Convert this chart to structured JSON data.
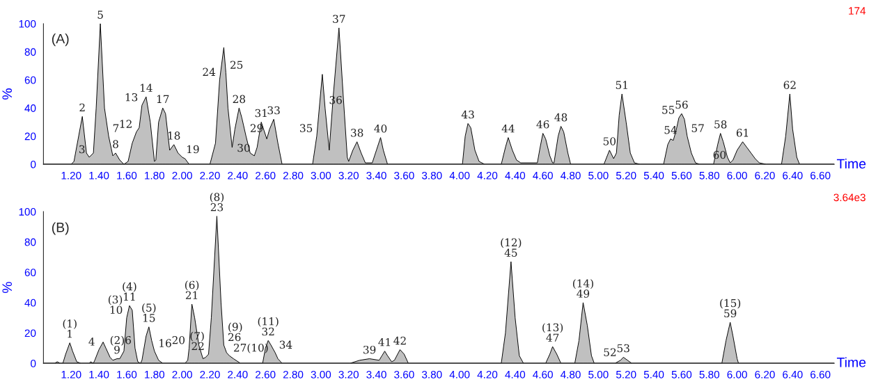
{
  "chart_data": [
    {
      "type": "area",
      "xlabel": "Time",
      "ylabel": "%",
      "color": "#c0c0c0",
      "x": [
        1.0,
        1.2,
        1.22,
        1.28,
        1.31,
        1.33,
        1.36,
        1.38,
        1.41,
        1.44,
        1.47,
        1.5,
        1.52,
        1.55,
        1.58,
        1.61,
        1.64,
        1.67,
        1.69,
        1.71,
        1.74,
        1.77,
        1.8,
        1.81,
        1.83,
        1.86,
        1.88,
        1.91,
        1.94,
        1.97,
        2.0,
        2.02,
        2.05,
        2.2,
        2.24,
        2.27,
        2.3,
        2.315,
        2.33,
        2.36,
        2.38,
        2.41,
        2.43,
        2.46,
        2.49,
        2.52,
        2.54,
        2.57,
        2.59,
        2.61,
        2.63,
        2.66,
        2.69,
        2.72,
        2.94,
        2.97,
        3.01,
        3.03,
        3.06,
        3.09,
        3.13,
        3.16,
        3.19,
        3.2,
        3.23,
        3.26,
        3.29,
        3.32,
        3.37,
        3.4,
        3.43,
        3.45,
        3.48,
        4.02,
        4.04,
        4.06,
        4.08,
        4.11,
        4.14,
        4.18,
        4.3,
        4.33,
        4.35,
        4.38,
        4.41,
        4.44,
        4.56,
        4.58,
        4.6,
        4.62,
        4.65,
        4.67,
        4.68,
        4.71,
        4.73,
        4.75,
        4.78,
        4.8,
        5.04,
        5.08,
        5.11,
        5.13,
        5.15,
        5.17,
        5.2,
        5.23,
        5.26,
        5.3,
        5.47,
        5.5,
        5.52,
        5.54,
        5.56,
        5.58,
        5.6,
        5.62,
        5.64,
        5.67,
        5.7,
        5.73,
        5.83,
        5.86,
        5.88,
        5.9,
        5.93,
        5.95,
        5.97,
        6.0,
        6.04,
        6.07,
        6.1,
        6.13,
        6.16,
        6.21,
        6.32,
        6.35,
        6.38,
        6.4,
        6.43,
        6.45,
        6.7
      ],
      "values": [
        0,
        0,
        2,
        34,
        8,
        5,
        8,
        40,
        100,
        40,
        20,
        6,
        8,
        3,
        0,
        2,
        15,
        23,
        26,
        42,
        48,
        30,
        2,
        3,
        30,
        40,
        36,
        10,
        14,
        8,
        5,
        4,
        0,
        0,
        15,
        60,
        83,
        65,
        40,
        12,
        25,
        40,
        33,
        20,
        8,
        6,
        12,
        30,
        24,
        18,
        25,
        32,
        15,
        0,
        0,
        20,
        64,
        40,
        10,
        50,
        97,
        50,
        5,
        2,
        10,
        16,
        8,
        1,
        1,
        10,
        19,
        10,
        0,
        0,
        20,
        29,
        26,
        10,
        2,
        0,
        0,
        12,
        19,
        10,
        3,
        1,
        1,
        12,
        22,
        18,
        6,
        1,
        1,
        20,
        27,
        23,
        8,
        0,
        0,
        10,
        4,
        8,
        35,
        50,
        30,
        8,
        1,
        0,
        0,
        14,
        18,
        17,
        24,
        33,
        36,
        32,
        20,
        8,
        1,
        0,
        0,
        14,
        22,
        16,
        5,
        1,
        3,
        10,
        16,
        12,
        8,
        4,
        1,
        0,
        0,
        20,
        50,
        25,
        5,
        0,
        0
      ],
      "xlim": [
        1.0,
        6.7
      ],
      "ylim": [
        0,
        100
      ],
      "yticks": [
        0,
        20,
        40,
        60,
        80,
        100
      ],
      "xticks": [
        {
          "value": 1.2,
          "label": "1.20"
        },
        {
          "value": 1.4,
          "label": "1.40"
        },
        {
          "value": 1.6,
          "label": "1.60"
        },
        {
          "value": 1.8,
          "label": "1.80"
        },
        {
          "value": 2.0,
          "label": "2.00"
        },
        {
          "value": 2.2,
          "label": "2.20"
        },
        {
          "value": 2.4,
          "label": "2.40"
        },
        {
          "value": 2.6,
          "label": "2.60"
        },
        {
          "value": 2.8,
          "label": "2.80"
        },
        {
          "value": 3.0,
          "label": "3.00"
        },
        {
          "value": 3.2,
          "label": "3.20"
        },
        {
          "value": 3.4,
          "label": "3.40"
        },
        {
          "value": 3.6,
          "label": "3.60"
        },
        {
          "value": 3.8,
          "label": "3.80"
        },
        {
          "value": 4.0,
          "label": "4.00"
        },
        {
          "value": 4.2,
          "label": "4.20"
        },
        {
          "value": 4.4,
          "label": "4.40"
        },
        {
          "value": 4.6,
          "label": "4.60"
        },
        {
          "value": 4.8,
          "label": "4.80"
        },
        {
          "value": 5.0,
          "label": "5.00"
        },
        {
          "value": 5.2,
          "label": "5.20"
        },
        {
          "value": 5.4,
          "label": "5.40"
        },
        {
          "value": 5.6,
          "label": "5.60"
        },
        {
          "value": 5.8,
          "label": "5.80"
        },
        {
          "value": 6.0,
          "label": "6.00"
        },
        {
          "value": 6.2,
          "label": "6.20"
        },
        {
          "value": 6.4,
          "label": "6.40"
        },
        {
          "value": 6.6,
          "label": "6.60"
        }
      ],
      "annotations": [
        "(A)",
        "174",
        {
          "text": "2",
          "x": 1.28,
          "y": 34
        },
        {
          "text": "3",
          "x": 1.33,
          "y": 5
        },
        {
          "text": "5",
          "x": 1.41,
          "y": 100
        },
        {
          "text": "7",
          "x": 1.47,
          "y": 20
        },
        {
          "text": "8",
          "x": 1.52,
          "y": 8
        },
        {
          "text": "12",
          "x": 1.67,
          "y": 23
        },
        {
          "text": "13",
          "x": 1.71,
          "y": 42
        },
        {
          "text": "14",
          "x": 1.74,
          "y": 48
        },
        {
          "text": "17",
          "x": 1.86,
          "y": 40
        },
        {
          "text": "18",
          "x": 1.94,
          "y": 14
        },
        {
          "text": "19",
          "x": 2.0,
          "y": 5
        },
        {
          "text": "24",
          "x": 2.27,
          "y": 60
        },
        {
          "text": "25",
          "x": 2.315,
          "y": 65
        },
        {
          "text": "28",
          "x": 2.41,
          "y": 40
        },
        {
          "text": "29",
          "x": 2.46,
          "y": 20
        },
        {
          "text": "30",
          "x": 2.52,
          "y": 6
        },
        {
          "text": "31",
          "x": 2.57,
          "y": 30
        },
        {
          "text": "33",
          "x": 2.66,
          "y": 32
        },
        {
          "text": "35",
          "x": 2.97,
          "y": 20
        },
        {
          "text": "36",
          "x": 3.03,
          "y": 40
        },
        {
          "text": "37",
          "x": 3.13,
          "y": 97
        },
        {
          "text": "38",
          "x": 3.26,
          "y": 16
        },
        {
          "text": "40",
          "x": 3.43,
          "y": 19
        },
        {
          "text": "43",
          "x": 4.06,
          "y": 29
        },
        {
          "text": "44",
          "x": 4.35,
          "y": 19
        },
        {
          "text": "46",
          "x": 4.6,
          "y": 22
        },
        {
          "text": "48",
          "x": 4.73,
          "y": 27
        },
        {
          "text": "50",
          "x": 5.08,
          "y": 10
        },
        {
          "text": "51",
          "x": 5.17,
          "y": 50
        },
        {
          "text": "54",
          "x": 5.52,
          "y": 18
        },
        {
          "text": "55",
          "x": 5.58,
          "y": 33
        },
        {
          "text": "56",
          "x": 5.6,
          "y": 36
        },
        {
          "text": "57",
          "x": 5.64,
          "y": 20
        },
        {
          "text": "58",
          "x": 5.88,
          "y": 22
        },
        {
          "text": "60",
          "x": 5.95,
          "y": 1
        },
        {
          "text": "61",
          "x": 6.04,
          "y": 16
        },
        {
          "text": "62",
          "x": 6.38,
          "y": 50
        }
      ]
    },
    {
      "type": "area",
      "xlabel": "Time",
      "ylabel": "%",
      "color": "#c0c0c0",
      "x": [
        1.0,
        1.08,
        1.1,
        1.12,
        1.14,
        1.16,
        1.19,
        1.21,
        1.24,
        1.27,
        1.33,
        1.34,
        1.36,
        1.37,
        1.4,
        1.43,
        1.45,
        1.48,
        1.5,
        1.53,
        1.55,
        1.58,
        1.6,
        1.62,
        1.64,
        1.66,
        1.68,
        1.7,
        1.71,
        1.74,
        1.76,
        1.78,
        1.8,
        1.83,
        1.86,
        2.02,
        2.04,
        2.05,
        2.07,
        2.09,
        2.12,
        2.15,
        2.17,
        2.19,
        2.21,
        2.25,
        2.28,
        2.3,
        2.32,
        2.34,
        2.37,
        2.42,
        2.58,
        2.6,
        2.62,
        2.64,
        2.67,
        2.69,
        2.72,
        3.21,
        3.28,
        3.35,
        3.42,
        3.44,
        3.46,
        3.48,
        3.51,
        3.53,
        3.57,
        3.6,
        3.63,
        4.3,
        4.33,
        4.37,
        4.4,
        4.43,
        4.46,
        4.62,
        4.65,
        4.67,
        4.7,
        4.73,
        4.83,
        4.86,
        4.89,
        4.92,
        4.95,
        4.97,
        5.12,
        5.16,
        5.18,
        5.21,
        5.24,
        5.89,
        5.92,
        5.95,
        5.97,
        6.0,
        6.01,
        6.7
      ],
      "values": [
        0,
        0,
        1,
        0,
        0,
        6,
        13.5,
        8,
        1,
        0,
        0,
        1,
        0,
        2,
        9,
        14,
        10,
        4,
        2,
        3,
        3,
        8,
        30,
        38,
        35,
        10,
        1,
        0,
        2,
        18,
        24,
        15,
        8,
        2,
        0,
        0,
        2,
        10,
        39,
        30,
        12,
        3,
        4,
        6,
        30,
        97,
        40,
        12,
        7,
        5,
        3,
        0,
        0,
        10,
        15,
        12,
        7,
        3,
        0,
        0,
        2,
        3,
        2,
        5,
        8,
        5,
        1,
        2,
        9,
        6,
        0,
        0,
        20,
        67,
        30,
        5,
        0,
        0,
        6,
        11,
        6,
        0,
        0,
        15,
        40,
        25,
        5,
        0,
        0,
        2,
        4,
        2,
        0,
        0,
        15,
        27,
        18,
        3,
        0,
        0
      ],
      "xlim": [
        1.0,
        6.7
      ],
      "ylim": [
        0,
        100
      ],
      "yticks": [
        0,
        20,
        40,
        60,
        80,
        100
      ],
      "xticks": [
        {
          "value": 1.2,
          "label": "1.20"
        },
        {
          "value": 1.4,
          "label": "1.40"
        },
        {
          "value": 1.6,
          "label": "1.60"
        },
        {
          "value": 1.8,
          "label": "1.80"
        },
        {
          "value": 2.0,
          "label": "2.00"
        },
        {
          "value": 2.2,
          "label": "2.20"
        },
        {
          "value": 2.4,
          "label": "2.40"
        },
        {
          "value": 2.6,
          "label": "2.60"
        },
        {
          "value": 2.8,
          "label": "2.80"
        },
        {
          "value": 3.0,
          "label": "3.00"
        },
        {
          "value": 3.2,
          "label": "3.20"
        },
        {
          "value": 3.4,
          "label": "3.40"
        },
        {
          "value": 3.6,
          "label": "3.60"
        },
        {
          "value": 3.8,
          "label": "3.80"
        },
        {
          "value": 4.0,
          "label": "4.00"
        },
        {
          "value": 4.2,
          "label": "4.20"
        },
        {
          "value": 4.4,
          "label": "4.40"
        },
        {
          "value": 4.6,
          "label": "4.60"
        },
        {
          "value": 4.8,
          "label": "4.80"
        },
        {
          "value": 5.0,
          "label": "5.00"
        },
        {
          "value": 5.2,
          "label": "5.20"
        },
        {
          "value": 5.4,
          "label": "5.40"
        },
        {
          "value": 5.6,
          "label": "5.60"
        },
        {
          "value": 5.8,
          "label": "5.80"
        },
        {
          "value": 6.0,
          "label": "6.00"
        },
        {
          "value": 6.2,
          "label": "6.20"
        },
        {
          "value": 6.4,
          "label": "6.40"
        },
        {
          "value": 6.6,
          "label": "6.60"
        }
      ],
      "annotations": [
        "(B)",
        "3.64e3",
        {
          "text": "(1)\n1",
          "x": 1.19,
          "y": 13.5
        },
        {
          "text": "4",
          "x": 1.4,
          "y": 9
        },
        {
          "text": "(2)6",
          "x": 1.45,
          "y": 10
        },
        {
          "text": "9",
          "x": 1.53,
          "y": 3
        },
        {
          "text": "(3)\n10",
          "x": 1.6,
          "y": 30
        },
        {
          "text": "(4)\n11",
          "x": 1.62,
          "y": 38
        },
        {
          "text": "(5)\n15",
          "x": 1.76,
          "y": 24
        },
        {
          "text": "16",
          "x": 1.8,
          "y": 8
        },
        {
          "text": "20",
          "x": 2.05,
          "y": 10
        },
        {
          "text": "(6)\n21",
          "x": 2.07,
          "y": 39
        },
        {
          "text": "(7)\n22",
          "x": 2.19,
          "y": 6
        },
        {
          "text": "(8)\n23",
          "x": 2.25,
          "y": 97
        },
        {
          "text": "(9)\n26",
          "x": 2.3,
          "y": 12
        },
        {
          "text": "27(10)",
          "x": 2.34,
          "y": 5
        },
        {
          "text": "(11)\n32",
          "x": 2.62,
          "y": 15
        },
        {
          "text": "34",
          "x": 2.67,
          "y": 7
        },
        {
          "text": "39",
          "x": 3.35,
          "y": 3
        },
        {
          "text": "41",
          "x": 3.46,
          "y": 8
        },
        {
          "text": "42",
          "x": 3.57,
          "y": 9
        },
        {
          "text": "(12)\n45",
          "x": 4.37,
          "y": 67
        },
        {
          "text": "(13)\n47",
          "x": 4.67,
          "y": 11
        },
        {
          "text": "(14)\n49",
          "x": 4.89,
          "y": 40
        },
        {
          "text": "52",
          "x": 5.16,
          "y": 2
        },
        {
          "text": "53",
          "x": 5.18,
          "y": 4
        },
        {
          "text": "(15)\n59",
          "x": 5.95,
          "y": 27
        }
      ]
    }
  ]
}
